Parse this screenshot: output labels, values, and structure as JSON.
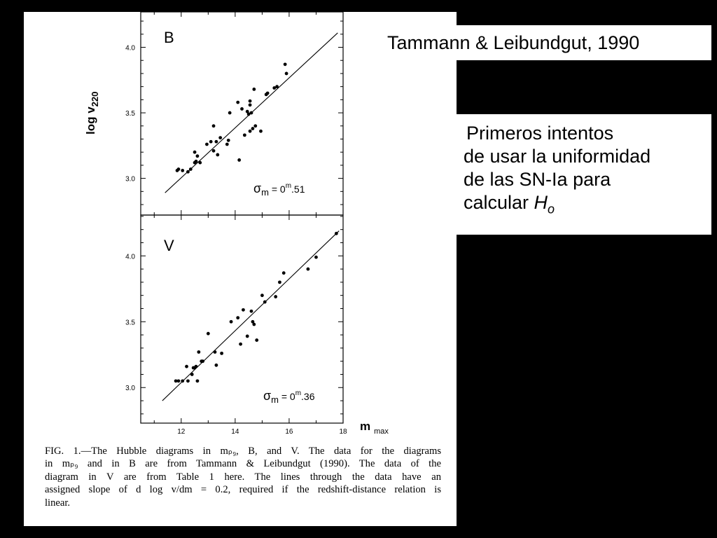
{
  "citation": "Tammann & Leibundgut, 1990",
  "note": {
    "lines": [
      "Primeros intentos",
      "de usar la uniformidad",
      "de las  SN-Ia para",
      "calcular "
    ],
    "h_symbol": "H",
    "h_subscript": "o"
  },
  "figure": {
    "ylabel_main": "log v",
    "ylabel_sub": "220",
    "xlabel_main": "m",
    "xlabel_sub": "max",
    "caption_lines": [
      "FIG. 1.—The Hubble diagrams in mₚ₉, B, and V. The data for the diagrams",
      "in mₚ₉ and in B are from Tammann & Leibundgut (1990). The data of the",
      "diagram in V are from Table 1 here. The lines through the data have an",
      "assigned slope of d log v/dm = 0.2, required if the redshift-distance relation is",
      "linear."
    ]
  },
  "chart_data": [
    {
      "type": "scatter",
      "panel_label": "B",
      "sigma_label": "σm = 0ᵐ.51",
      "sigma_symbol": "σ",
      "sigma_sub": "m",
      "sigma_value": "0",
      "sigma_sup": "m",
      "sigma_frac": ".51",
      "xlim": [
        10.5,
        18.0
      ],
      "ylim": [
        2.72,
        4.27
      ],
      "yticks": [
        3.0,
        3.5,
        4.0
      ],
      "ytick_labels": [
        "3.0",
        "3.5",
        "4.0"
      ],
      "xticks": [
        12,
        14,
        16,
        18
      ],
      "fit_line": {
        "x": [
          11.4,
          17.8
        ],
        "y": [
          2.89,
          4.11
        ]
      },
      "points": [
        [
          11.85,
          3.06
        ],
        [
          11.9,
          3.07
        ],
        [
          12.05,
          3.06
        ],
        [
          12.25,
          3.05
        ],
        [
          12.35,
          3.07
        ],
        [
          12.5,
          3.12
        ],
        [
          12.55,
          3.13
        ],
        [
          12.5,
          3.2
        ],
        [
          12.6,
          3.17
        ],
        [
          12.7,
          3.12
        ],
        [
          12.95,
          3.26
        ],
        [
          13.1,
          3.28
        ],
        [
          13.2,
          3.4
        ],
        [
          13.2,
          3.21
        ],
        [
          13.3,
          3.28
        ],
        [
          13.35,
          3.18
        ],
        [
          13.45,
          3.31
        ],
        [
          13.75,
          3.29
        ],
        [
          13.7,
          3.26
        ],
        [
          13.8,
          3.5
        ],
        [
          14.1,
          3.58
        ],
        [
          14.15,
          3.14
        ],
        [
          14.25,
          3.53
        ],
        [
          14.35,
          3.33
        ],
        [
          14.45,
          3.51
        ],
        [
          14.5,
          3.49
        ],
        [
          14.55,
          3.56
        ],
        [
          14.55,
          3.59
        ],
        [
          14.6,
          3.5
        ],
        [
          14.55,
          3.36
        ],
        [
          14.65,
          3.38
        ],
        [
          14.7,
          3.68
        ],
        [
          14.75,
          3.4
        ],
        [
          14.95,
          3.36
        ],
        [
          15.15,
          3.64
        ],
        [
          15.2,
          3.65
        ],
        [
          15.45,
          3.69
        ],
        [
          15.55,
          3.7
        ],
        [
          15.85,
          3.87
        ],
        [
          15.9,
          3.8
        ]
      ]
    },
    {
      "type": "scatter",
      "panel_label": "V",
      "sigma_label": "σm = 0ᵐ.36",
      "sigma_symbol": "σ",
      "sigma_sub": "m",
      "sigma_value": "0",
      "sigma_sup": "m",
      "sigma_frac": ".36",
      "xlim": [
        10.5,
        18.0
      ],
      "ylim": [
        2.73,
        4.31
      ],
      "yticks": [
        3.0,
        3.5,
        4.0
      ],
      "ytick_labels": [
        "3.0",
        "3.5",
        "4.0"
      ],
      "xticks": [
        12,
        14,
        16,
        18
      ],
      "xtick_labels": [
        "12",
        "14",
        "16",
        "18"
      ],
      "fit_line": {
        "x": [
          11.3,
          17.85
        ],
        "y": [
          2.9,
          4.19
        ]
      },
      "points": [
        [
          11.8,
          3.05
        ],
        [
          11.9,
          3.05
        ],
        [
          12.05,
          3.05
        ],
        [
          12.2,
          3.16
        ],
        [
          12.25,
          3.05
        ],
        [
          12.4,
          3.1
        ],
        [
          12.45,
          3.15
        ],
        [
          12.5,
          3.15
        ],
        [
          12.55,
          3.16
        ],
        [
          12.6,
          3.05
        ],
        [
          12.65,
          3.27
        ],
        [
          12.75,
          3.2
        ],
        [
          12.8,
          3.2
        ],
        [
          13.0,
          3.41
        ],
        [
          13.25,
          3.27
        ],
        [
          13.3,
          3.17
        ],
        [
          13.5,
          3.26
        ],
        [
          13.85,
          3.5
        ],
        [
          14.1,
          3.53
        ],
        [
          14.2,
          3.33
        ],
        [
          14.3,
          3.59
        ],
        [
          14.45,
          3.39
        ],
        [
          14.6,
          3.58
        ],
        [
          14.65,
          3.5
        ],
        [
          14.7,
          3.48
        ],
        [
          14.8,
          3.36
        ],
        [
          15.0,
          3.7
        ],
        [
          15.1,
          3.65
        ],
        [
          15.5,
          3.69
        ],
        [
          15.65,
          3.8
        ],
        [
          15.8,
          3.87
        ],
        [
          16.7,
          3.9
        ],
        [
          17.0,
          3.99
        ],
        [
          17.75,
          4.17
        ]
      ]
    }
  ]
}
